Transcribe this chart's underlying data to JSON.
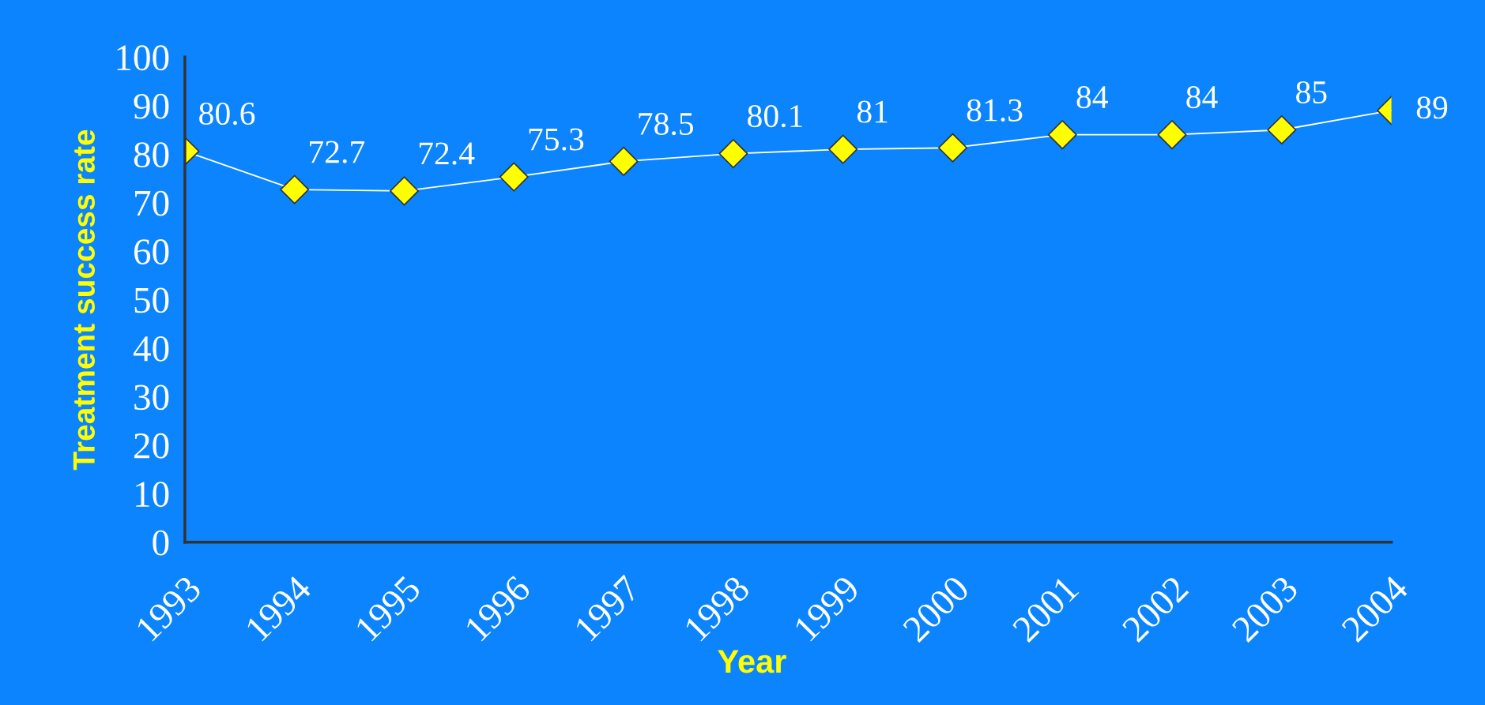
{
  "chart_data": {
    "type": "line",
    "xlabel": "Year",
    "ylabel": "Treatment success rate",
    "categories": [
      "1993",
      "1994",
      "1995",
      "1996",
      "1997",
      "1998",
      "1999",
      "2000",
      "2001",
      "2002",
      "2003",
      "2004"
    ],
    "series": [
      {
        "color": "#ffff00",
        "values": [
          80.6,
          72.7,
          72.4,
          75.3,
          78.5,
          80.1,
          81,
          81.3,
          84,
          84,
          85,
          89
        ]
      }
    ],
    "ylim": [
      0,
      100
    ],
    "yticks": [
      0,
      10,
      20,
      30,
      40,
      50,
      60,
      70,
      80,
      90,
      100
    ],
    "marker": "diamond",
    "line_style": "solid",
    "data_labels": true,
    "grid": false,
    "legend": false
  }
}
